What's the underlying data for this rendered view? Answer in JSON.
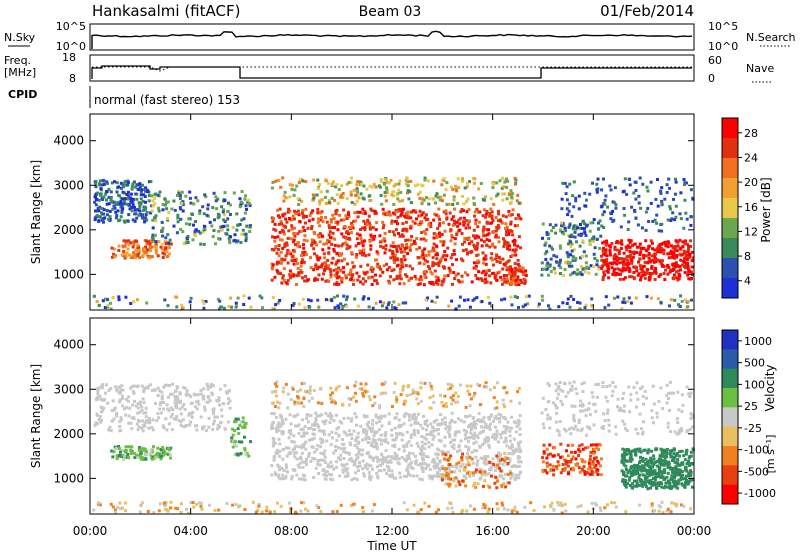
{
  "header": {
    "station": "Hankasalmi (fitACF)",
    "beam": "Beam 03",
    "date": "01/Feb/2014"
  },
  "sky_panel": {
    "left_label": "N.Sky",
    "right_label": "N.Search",
    "left_ticks": [
      "10^5",
      "10^0"
    ],
    "right_ticks": [
      "10^5",
      "10^0"
    ]
  },
  "freq_panel": {
    "left_label": "Freq.",
    "left_unit": "[MHz]",
    "left_ticks": [
      "18",
      "8"
    ],
    "right_label": "Nave",
    "right_ticks": [
      "60",
      "0"
    ]
  },
  "cpid": {
    "label": "CPID",
    "value": "normal (fast stereo) 153"
  },
  "colors": {
    "power_scale": [
      "#1f2fd6",
      "#2d4fb0",
      "#3a8a5c",
      "#6aa84f",
      "#e8c84a",
      "#f0a030",
      "#f07020",
      "#e03010",
      "#ff0000"
    ],
    "velocity_scale": [
      "#2030c0",
      "#2a5aa8",
      "#2e8a5a",
      "#6cc040",
      "#c8c8c8",
      "#e8c060",
      "#f08020",
      "#e84010",
      "#ff0000"
    ]
  },
  "chart_data": [
    {
      "type": "heatmap",
      "ylabel": "Slant Range [km]",
      "y_ticks": [
        "1000",
        "2000",
        "3000",
        "4000"
      ],
      "ylim": [
        200,
        4600
      ],
      "x_ticks": [
        "00:00",
        "04:00",
        "08:00",
        "12:00",
        "16:00",
        "20:00",
        "00:00"
      ],
      "colorbar": {
        "label": "Power [dB]",
        "ticks": [
          "4",
          "8",
          "12",
          "16",
          "20",
          "24",
          "28"
        ]
      }
    },
    {
      "type": "heatmap",
      "ylabel": "Slant Range [km]",
      "y_ticks": [
        "1000",
        "2000",
        "3000",
        "4000"
      ],
      "ylim": [
        200,
        4600
      ],
      "x_ticks": [
        "00:00",
        "04:00",
        "08:00",
        "12:00",
        "16:00",
        "20:00",
        "00:00"
      ],
      "xlabel": "Time UT",
      "colorbar": {
        "label": "Velocity",
        "unit": "[m s⁻¹]",
        "ticks": [
          "1000",
          "500",
          "100",
          "25",
          "-25",
          "-100",
          "-500",
          "-1000"
        ]
      }
    }
  ]
}
